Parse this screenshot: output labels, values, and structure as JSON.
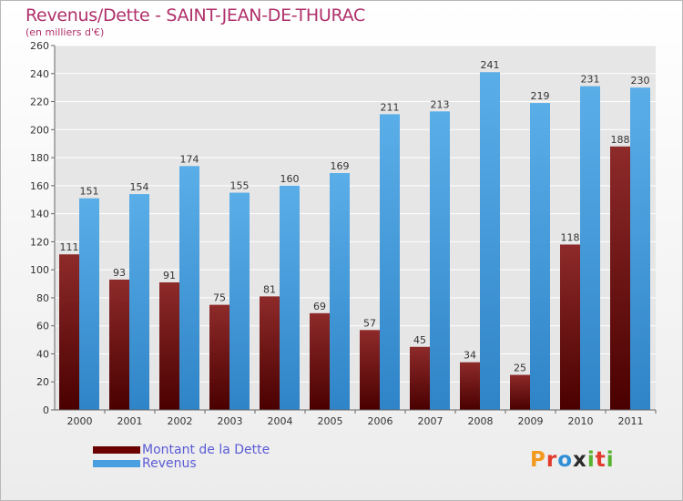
{
  "header": {
    "title": "Revenus/Dette - SAINT-JEAN-DE-THURAC",
    "subtitle": "(en milliers d'€)"
  },
  "logo": {
    "text": "Proxiti",
    "letter_colors": [
      "#f39a1e",
      "#e23a2c",
      "#2f8fd6",
      "#2a2a2a",
      "#58b232",
      "#e23a2c",
      "#58b232"
    ]
  },
  "legend": {
    "items": [
      "Montant de la Dette",
      "Revenus"
    ]
  },
  "colors": {
    "debt_top": "#8e2a2a",
    "debt_bottom": "#4a0000",
    "revenue_top": "#5aaee8",
    "revenue_bottom": "#2f84c8",
    "grid": "#ffffff",
    "axis_text": "#333333"
  },
  "chart_data": {
    "type": "bar",
    "categories": [
      "2000",
      "2001",
      "2002",
      "2003",
      "2004",
      "2005",
      "2006",
      "2007",
      "2008",
      "2009",
      "2010",
      "2011"
    ],
    "series": [
      {
        "name": "Montant de la Dette",
        "values": [
          111,
          93,
          91,
          75,
          81,
          69,
          57,
          45,
          34,
          25,
          118,
          188
        ]
      },
      {
        "name": "Revenus",
        "values": [
          151,
          154,
          174,
          155,
          160,
          169,
          211,
          213,
          241,
          219,
          231,
          230
        ]
      }
    ],
    "title": "Revenus/Dette - SAINT-JEAN-DE-THURAC",
    "ylabel": "(en milliers d'€)",
    "xlabel": "",
    "ylim": [
      0,
      260
    ],
    "yticks": [
      0,
      20,
      40,
      60,
      80,
      100,
      120,
      140,
      160,
      180,
      200,
      220,
      240,
      260
    ],
    "grid": true,
    "legend_position": "bottom-left"
  }
}
